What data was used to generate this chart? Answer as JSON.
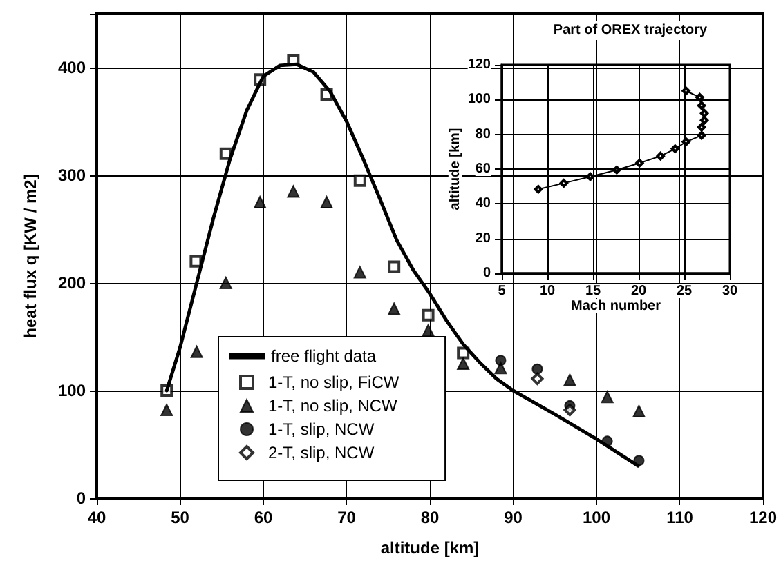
{
  "chart_data": [
    {
      "type": "scatter",
      "xlabel": "altitude [km]",
      "ylabel": "heat flux q [KW / m2]",
      "xlim": [
        40,
        120
      ],
      "xticks": [
        40,
        50,
        60,
        70,
        80,
        90,
        100,
        110,
        120
      ],
      "ylim": [
        0,
        450
      ],
      "yticks": [
        0,
        100,
        200,
        300,
        400,
        {
          "value": 450,
          "label": null
        }
      ],
      "grid": true,
      "legend": "bottom left",
      "series": [
        {
          "name": "free flight data",
          "type": "line",
          "marker": "none",
          "line_style": "solid",
          "color": "#000000",
          "x": [
            48.4,
            50,
            52,
            54,
            56,
            58,
            60,
            62,
            64,
            66,
            68,
            70,
            72,
            74,
            76,
            78,
            80,
            82,
            84,
            86,
            88,
            90,
            95,
            100,
            105
          ],
          "values": [
            100,
            140,
            200,
            260,
            315,
            360,
            392,
            402,
            403,
            396,
            378,
            350,
            315,
            278,
            240,
            212,
            190,
            165,
            143,
            126,
            111,
            100,
            78,
            55,
            30
          ]
        },
        {
          "name": "1-T, no slip, FiCW",
          "marker": "square",
          "color": "#000000",
          "x": [
            48.4,
            51.9,
            55.5,
            59.6,
            63.6,
            67.6,
            71.6,
            75.7,
            79.8,
            84.0
          ],
          "values": [
            100,
            220,
            320,
            389,
            407,
            375,
            295,
            215,
            170,
            135
          ]
        },
        {
          "name": "1-T, no slip, NCW",
          "marker": "triangle",
          "color": "#000000",
          "x": [
            48.4,
            52.0,
            55.5,
            59.6,
            63.6,
            67.6,
            71.6,
            75.7,
            79.8,
            84.0,
            88.5,
            96.8,
            101.3,
            105.1
          ],
          "values": [
            82,
            136,
            200,
            275,
            285,
            275,
            210,
            176,
            156,
            125,
            121,
            110,
            94,
            81
          ]
        },
        {
          "name": "1-T, slip, NCW",
          "marker": "circle",
          "color": "#000000",
          "x": [
            88.5,
            92.9,
            96.8,
            101.3,
            105.1
          ],
          "values": [
            128,
            120,
            86,
            53,
            35
          ]
        },
        {
          "name": "2-T, slip, NCW",
          "marker": "diamond",
          "color": "#000000",
          "x": [
            92.9,
            96.8
          ],
          "values": [
            111,
            82
          ]
        }
      ]
    },
    {
      "type": "line",
      "title": "Part of OREX trajectory",
      "xlabel": "Mach number",
      "ylabel": "altitude [km]",
      "xlim": [
        5,
        30
      ],
      "xticks": [
        5,
        10,
        15,
        20,
        25,
        30
      ],
      "ylim": [
        0,
        120
      ],
      "yticks": [
        0,
        20,
        40,
        60,
        80,
        100,
        120
      ],
      "grid": true,
      "marker": "diamond",
      "line_style": "solid",
      "series": [
        {
          "color": "#000000",
          "x": [
            9.0,
            11.8,
            14.7,
            17.6,
            20.1,
            22.4,
            24.0,
            25.2,
            26.9,
            26.9,
            27.2,
            27.2,
            26.9,
            26.7,
            25.2
          ],
          "values": [
            48.4,
            51.9,
            55.6,
            59.5,
            63.5,
            67.5,
            71.7,
            75.7,
            79.4,
            84.1,
            88.1,
            92.1,
            96.6,
            101.3,
            105
          ]
        }
      ]
    }
  ]
}
